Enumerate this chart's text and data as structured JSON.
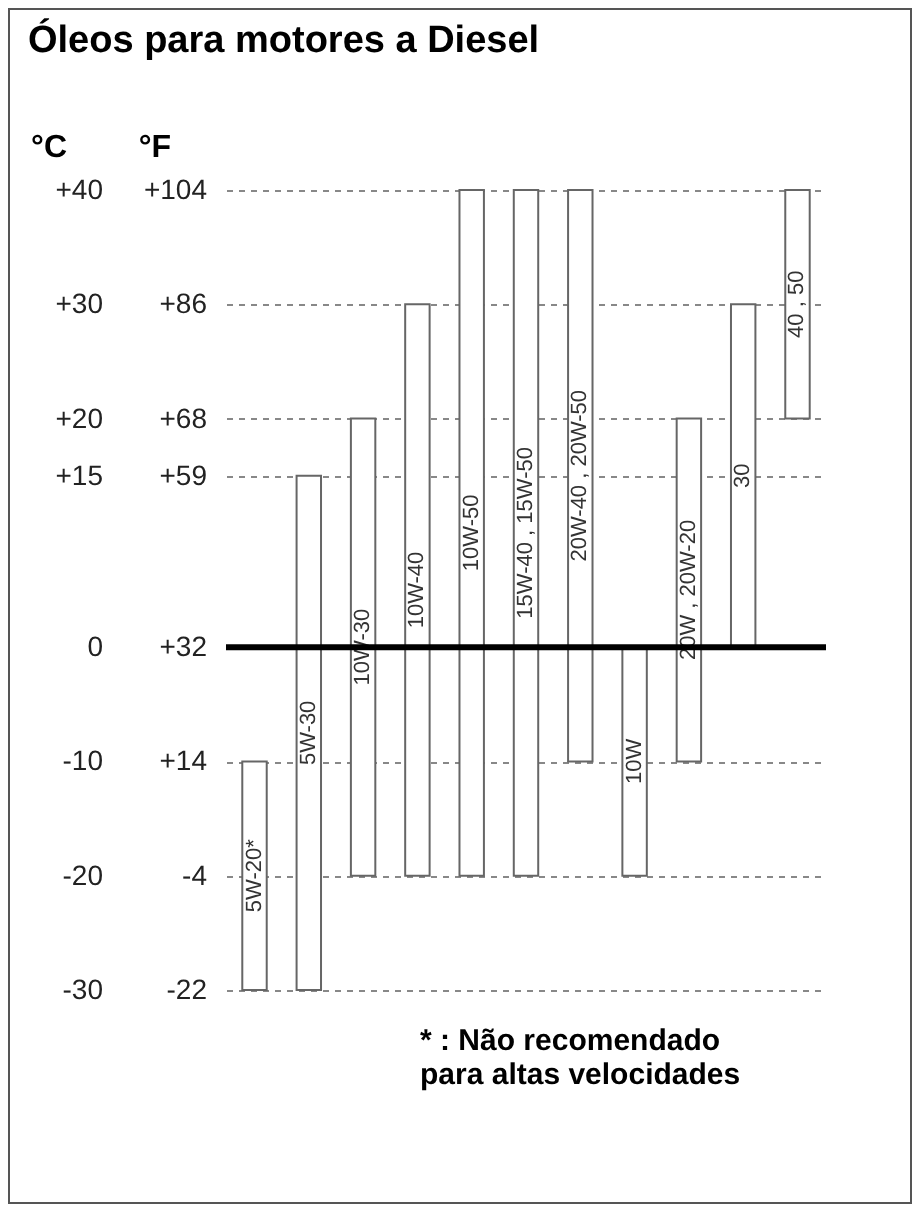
{
  "chart_data": {
    "type": "bar",
    "title": "Óleos para motores a Diesel",
    "ylabel": "°C",
    "y2label": "°F",
    "categories": [
      "5W-20*",
      "5W-30",
      "10W-30",
      "10W-40",
      "10W-50",
      "15W-40 , 15W-50",
      "20W-40 , 20W-50",
      "10W",
      "20W , 20W-20",
      "30",
      "40 , 50"
    ],
    "base": [
      -30,
      -30,
      -20,
      -20,
      -20,
      -20,
      -10,
      -20,
      -10,
      0,
      20
    ],
    "values": [
      20,
      45,
      40,
      50,
      60,
      60,
      50,
      20,
      30,
      30,
      20
    ],
    "color": "#ffffff",
    "ylim": [
      -30,
      40
    ],
    "yticks": [
      -30,
      -20,
      -10,
      0,
      {
        "value": 15,
        "label": "+15"
      },
      {
        "value": 20,
        "label": "+20"
      },
      {
        "value": 30,
        "label": "+30"
      },
      {
        "value": 40,
        "label": "+40"
      }
    ],
    "y2lim": [
      -22,
      104
    ],
    "y2ticks": [
      -22,
      -4,
      {
        "value": 14,
        "label": "+14"
      },
      {
        "value": 32,
        "label": "+32"
      },
      {
        "value": 59,
        "label": "+59"
      },
      {
        "value": 68,
        "label": "+68"
      },
      {
        "value": 86,
        "label": "+86"
      },
      {
        "value": 104,
        "label": "+104"
      }
    ],
    "grid": "y",
    "ref_lines": [
      {
        "axis": "y",
        "value": 0,
        "color": "#000000"
      }
    ],
    "annotations": [
      "* : Não recomendado\npara altas velocidades"
    ]
  }
}
